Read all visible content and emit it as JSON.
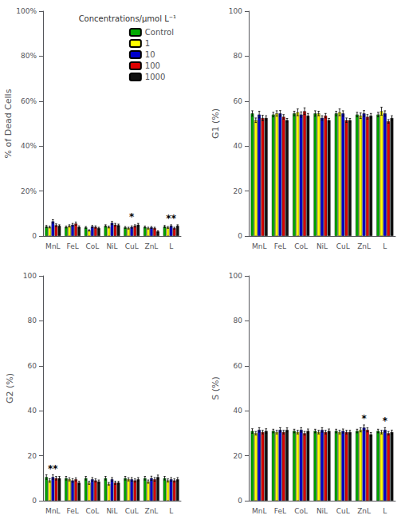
{
  "chart_data": [
    {
      "type": "bar",
      "ylabel": "% of Dead Cells",
      "categories": [
        "MnL",
        "FeL",
        "CoL",
        "NiL",
        "CuL",
        "ZnL",
        "L"
      ],
      "series": [
        {
          "name": "Control",
          "color": "#00aa00",
          "values": [
            4.2,
            4.0,
            3.8,
            4.5,
            3.8,
            4.0,
            4.2
          ],
          "errors": [
            0.5,
            0.4,
            0.4,
            0.5,
            0.4,
            0.4,
            0.5
          ]
        },
        {
          "name": "1",
          "color": "#ffff00",
          "values": [
            4.0,
            4.5,
            2.5,
            4.0,
            3.5,
            3.5,
            3.8
          ],
          "errors": [
            0.4,
            0.5,
            0.3,
            0.4,
            0.4,
            0.4,
            0.4
          ]
        },
        {
          "name": "10",
          "color": "#0000cc",
          "values": [
            6.5,
            5.0,
            4.2,
            5.8,
            4.0,
            3.8,
            4.5
          ],
          "errors": [
            0.8,
            0.6,
            0.5,
            0.7,
            0.5,
            0.4,
            0.5
          ]
        },
        {
          "name": "100",
          "color": "#dd0000",
          "values": [
            4.8,
            5.5,
            4.0,
            5.0,
            4.5,
            3.5,
            3.5
          ],
          "errors": [
            0.6,
            0.7,
            0.5,
            0.6,
            0.5,
            0.4,
            0.4
          ]
        },
        {
          "name": "1000",
          "color": "#111111",
          "values": [
            4.5,
            4.0,
            3.5,
            4.8,
            5.0,
            2.0,
            4.5
          ],
          "errors": [
            0.5,
            0.5,
            0.4,
            0.5,
            0.6,
            0.3,
            0.5
          ]
        }
      ],
      "ylim": [
        0,
        100
      ],
      "yticks": [
        0,
        {
          "value": 20,
          "label": "20%"
        },
        {
          "value": 40,
          "label": "40%"
        },
        {
          "value": 60,
          "label": "60%"
        },
        {
          "value": 80,
          "label": "80%"
        },
        {
          "value": 100,
          "label": "100%"
        }
      ],
      "grid": false,
      "legend": "upper right",
      "legend_title": "Concentrations/μmol L⁻¹",
      "annotations": [
        {
          "x": "CuL",
          "text": "*"
        },
        {
          "x": "L",
          "text": "**"
        }
      ]
    },
    {
      "type": "bar",
      "ylabel": "G1 (%)",
      "categories": [
        "MnL",
        "FeL",
        "CoL",
        "NiL",
        "CuL",
        "ZnL",
        "L"
      ],
      "series": [
        {
          "name": "Control",
          "color": "#00aa00",
          "values": [
            54.5,
            54.0,
            54.5,
            54.5,
            54.5,
            54.0,
            54.0
          ],
          "errors": [
            1.2,
            1.0,
            1.0,
            1.2,
            1.0,
            1.0,
            1.0
          ]
        },
        {
          "name": "1",
          "color": "#ffff00",
          "values": [
            51.5,
            54.5,
            55.0,
            54.5,
            55.0,
            53.5,
            55.5
          ],
          "errors": [
            1.0,
            1.2,
            1.5,
            1.0,
            1.5,
            1.2,
            1.8
          ]
        },
        {
          "name": "10",
          "color": "#0000cc",
          "values": [
            54.0,
            54.5,
            54.0,
            52.5,
            54.5,
            54.5,
            54.5
          ],
          "errors": [
            1.5,
            1.3,
            1.2,
            1.0,
            1.2,
            1.3,
            1.2
          ]
        },
        {
          "name": "100",
          "color": "#dd0000",
          "values": [
            52.5,
            53.0,
            55.5,
            53.5,
            51.5,
            53.0,
            51.0
          ],
          "errors": [
            1.2,
            1.0,
            1.5,
            1.0,
            1.0,
            1.0,
            0.8
          ]
        },
        {
          "name": "1000",
          "color": "#111111",
          "values": [
            52.5,
            51.5,
            53.5,
            51.5,
            51.5,
            53.5,
            52.5
          ],
          "errors": [
            1.0,
            0.8,
            1.0,
            0.8,
            0.8,
            1.0,
            1.0
          ]
        }
      ],
      "ylim": [
        0,
        100
      ],
      "yticks": [
        0,
        20,
        40,
        60,
        80,
        100
      ],
      "grid": false,
      "annotations": []
    },
    {
      "type": "bar",
      "ylabel": "G2 (%)",
      "categories": [
        "MnL",
        "FeL",
        "CoL",
        "NiL",
        "CuL",
        "ZnL",
        "L"
      ],
      "series": [
        {
          "name": "Control",
          "color": "#00aa00",
          "values": [
            10.5,
            10.0,
            10.0,
            10.0,
            10.0,
            10.0,
            10.0
          ],
          "errors": [
            1.0,
            0.8,
            0.8,
            0.8,
            0.8,
            0.8,
            0.8
          ]
        },
        {
          "name": "1",
          "color": "#ffff00",
          "values": [
            9.0,
            9.5,
            8.0,
            7.5,
            9.5,
            8.5,
            9.0
          ],
          "errors": [
            0.8,
            0.7,
            0.7,
            0.6,
            0.7,
            0.7,
            0.7
          ]
        },
        {
          "name": "10",
          "color": "#0000cc",
          "values": [
            10.5,
            9.0,
            9.5,
            9.5,
            9.5,
            10.0,
            9.5
          ],
          "errors": [
            1.0,
            0.8,
            0.8,
            0.8,
            0.8,
            0.9,
            0.8
          ]
        },
        {
          "name": "100",
          "color": "#dd0000",
          "values": [
            10.0,
            9.5,
            9.0,
            8.0,
            9.0,
            9.5,
            9.0
          ],
          "errors": [
            0.8,
            0.7,
            0.7,
            0.7,
            0.7,
            0.8,
            0.7
          ]
        },
        {
          "name": "1000",
          "color": "#111111",
          "values": [
            10.0,
            8.0,
            8.5,
            8.0,
            9.5,
            10.5,
            9.5
          ],
          "errors": [
            0.8,
            0.7,
            0.7,
            0.6,
            0.8,
            0.9,
            0.8
          ]
        }
      ],
      "ylim": [
        0,
        100
      ],
      "yticks": [
        0,
        20,
        40,
        60,
        80,
        100
      ],
      "grid": false,
      "annotations": [
        {
          "x": "MnL",
          "text": "**"
        }
      ]
    },
    {
      "type": "bar",
      "ylabel": "S (%)",
      "categories": [
        "MnL",
        "FeL",
        "CoL",
        "NiL",
        "CuL",
        "ZnL",
        "L"
      ],
      "series": [
        {
          "name": "Control",
          "color": "#00aa00",
          "values": [
            31.0,
            31.0,
            31.0,
            31.0,
            31.0,
            31.0,
            31.0
          ],
          "errors": [
            1.0,
            0.8,
            0.8,
            0.8,
            0.8,
            0.8,
            0.8
          ]
        },
        {
          "name": "1",
          "color": "#ffff00",
          "values": [
            30.0,
            30.5,
            30.5,
            30.5,
            30.5,
            31.5,
            30.5
          ],
          "errors": [
            0.8,
            0.8,
            0.8,
            0.8,
            0.8,
            0.9,
            0.8
          ]
        },
        {
          "name": "10",
          "color": "#0000cc",
          "values": [
            31.5,
            31.5,
            31.5,
            31.5,
            31.0,
            32.5,
            31.5
          ],
          "errors": [
            1.0,
            1.0,
            1.0,
            1.0,
            0.9,
            1.2,
            1.0
          ]
        },
        {
          "name": "100",
          "color": "#dd0000",
          "values": [
            30.5,
            30.5,
            30.0,
            30.5,
            30.5,
            31.5,
            30.0
          ],
          "errors": [
            0.8,
            0.8,
            0.8,
            0.8,
            0.8,
            0.9,
            0.8
          ]
        },
        {
          "name": "1000",
          "color": "#111111",
          "values": [
            31.0,
            31.5,
            31.0,
            31.0,
            30.5,
            29.5,
            30.5
          ],
          "errors": [
            1.0,
            0.9,
            0.9,
            0.9,
            0.8,
            0.8,
            0.9
          ]
        }
      ],
      "ylim": [
        0,
        100
      ],
      "yticks": [
        0,
        20,
        40,
        60,
        80,
        100
      ],
      "grid": false,
      "annotations": [
        {
          "x": "ZnL",
          "text": "*"
        },
        {
          "x": "L",
          "text": "*"
        }
      ]
    }
  ]
}
